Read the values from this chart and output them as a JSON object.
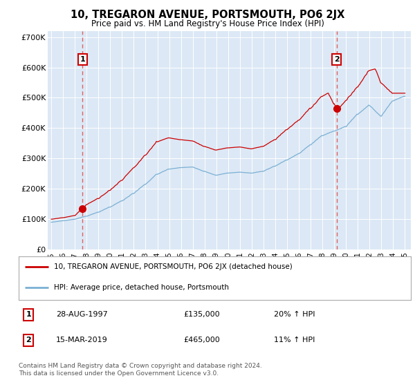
{
  "title": "10, TREGARON AVENUE, PORTSMOUTH, PO6 2JX",
  "subtitle": "Price paid vs. HM Land Registry's House Price Index (HPI)",
  "ylim": [
    0,
    720000
  ],
  "yticks": [
    0,
    100000,
    200000,
    300000,
    400000,
    500000,
    600000,
    700000
  ],
  "ytick_labels": [
    "£0",
    "£100K",
    "£200K",
    "£300K",
    "£400K",
    "£500K",
    "£600K",
    "£700K"
  ],
  "plot_bg_color": "#dce8f5",
  "red_line_color": "#cc0000",
  "blue_line_color": "#7ab0d4",
  "dashed_color": "#e06060",
  "transaction1": {
    "date": 1997.66,
    "price": 135000,
    "label": "1",
    "pct": "20% ↑ HPI",
    "date_str": "28-AUG-1997",
    "price_str": "£135,000"
  },
  "transaction2": {
    "date": 2019.21,
    "price": 465000,
    "label": "2",
    "pct": "11% ↑ HPI",
    "date_str": "15-MAR-2019",
    "price_str": "£465,000"
  },
  "legend_line1": "10, TREGARON AVENUE, PORTSMOUTH, PO6 2JX (detached house)",
  "legend_line2": "HPI: Average price, detached house, Portsmouth",
  "footer": "Contains HM Land Registry data © Crown copyright and database right 2024.\nThis data is licensed under the Open Government Licence v3.0.",
  "xlim_left": 1994.7,
  "xlim_right": 2025.5
}
